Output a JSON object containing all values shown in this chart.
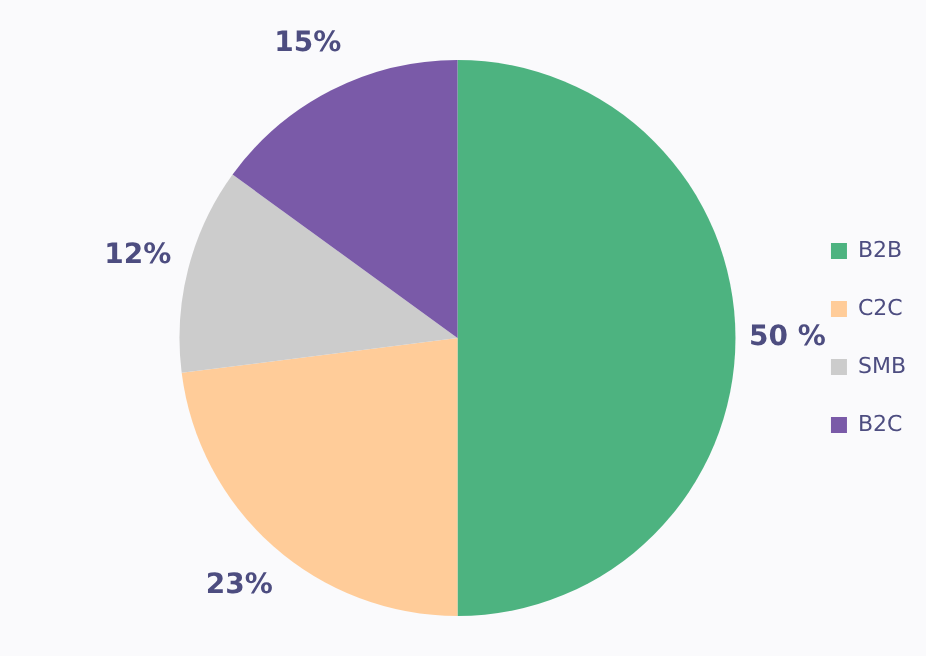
{
  "chart_data": {
    "type": "pie",
    "categories": [
      "B2B",
      "C2C",
      "SMB",
      "B2C"
    ],
    "values": [
      50,
      23,
      12,
      15
    ],
    "colors": [
      "#4db380",
      "#ffcc99",
      "#cccccc",
      "#7a5aa8"
    ],
    "value_labels": [
      "50 %",
      "23%",
      "12%",
      "15%"
    ],
    "legend": "right"
  }
}
